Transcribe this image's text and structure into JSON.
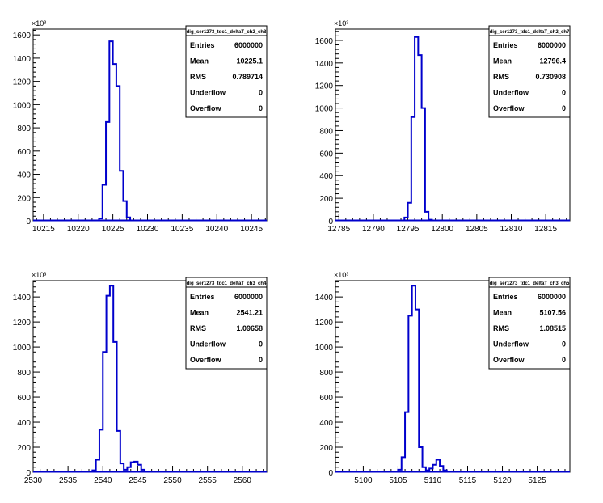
{
  "chart_data": [
    {
      "type": "histogram",
      "stats": {
        "title": "dig_ser1273_tdc1_deltaT_ch2_ch8",
        "rows": [
          {
            "label": "Entries",
            "value": "6000000"
          },
          {
            "label": "Mean",
            "value": "10225.1"
          },
          {
            "label": "RMS",
            "value": "0.789714"
          },
          {
            "label": "Underflow",
            "value": "0"
          },
          {
            "label": "Overflow",
            "value": "0"
          }
        ]
      },
      "xlim": [
        10213.5,
        10247.2
      ],
      "ylim": [
        0,
        1650
      ],
      "y_multiplier": "×10³",
      "x_ticks": [
        "10215",
        "10220",
        "10225",
        "10230",
        "10235",
        "10240",
        "10245"
      ],
      "y_ticks": [
        "0",
        "200",
        "400",
        "600",
        "800",
        "1000",
        "1200",
        "1400",
        "1600"
      ],
      "bin_width": 0.5,
      "bin_start": 10223,
      "counts": [
        20,
        310,
        850,
        1545,
        1350,
        1160,
        430,
        170,
        30
      ]
    },
    {
      "type": "histogram",
      "stats": {
        "title": "dig_ser1273_tdc1_deltaT_ch2_ch7",
        "rows": [
          {
            "label": "Entries",
            "value": "6000000"
          },
          {
            "label": "Mean",
            "value": "12796.4"
          },
          {
            "label": "RMS",
            "value": "0.730908"
          },
          {
            "label": "Underflow",
            "value": "0"
          },
          {
            "label": "Overflow",
            "value": "0"
          }
        ]
      },
      "xlim": [
        12784.5,
        12818.5
      ],
      "ylim": [
        0,
        1700
      ],
      "y_multiplier": "×10³",
      "x_ticks": [
        "12785",
        "12790",
        "12795",
        "12800",
        "12805",
        "12810",
        "12815"
      ],
      "y_ticks": [
        "0",
        "200",
        "400",
        "600",
        "800",
        "1000",
        "1200",
        "1400",
        "1600"
      ],
      "bin_width": 0.5,
      "bin_start": 12794.5,
      "counts": [
        30,
        160,
        920,
        1630,
        1470,
        1000,
        80,
        10
      ]
    },
    {
      "type": "histogram",
      "stats": {
        "title": "dig_ser1273_tdc1_deltaT_ch3_ch4",
        "rows": [
          {
            "label": "Entries",
            "value": "6000000"
          },
          {
            "label": "Mean",
            "value": "2541.21"
          },
          {
            "label": "RMS",
            "value": "1.09658"
          },
          {
            "label": "Underflow",
            "value": "0"
          },
          {
            "label": "Overflow",
            "value": "0"
          }
        ]
      },
      "xlim": [
        2530,
        2563.5
      ],
      "ylim": [
        0,
        1530
      ],
      "y_multiplier": "×10³",
      "x_ticks": [
        "2530",
        "2535",
        "2540",
        "2545",
        "2550",
        "2555",
        "2560"
      ],
      "y_ticks": [
        "0",
        "200",
        "400",
        "600",
        "800",
        "1000",
        "1200",
        "1400"
      ],
      "bin_width": 0.5,
      "bin_start": 2538.5,
      "counts": [
        15,
        100,
        340,
        960,
        1410,
        1490,
        1040,
        330,
        70,
        20,
        40,
        80,
        85,
        60,
        20
      ]
    },
    {
      "type": "histogram",
      "stats": {
        "title": "dig_ser1273_tdc1_deltaT_ch3_ch5",
        "rows": [
          {
            "label": "Entries",
            "value": "6000000"
          },
          {
            "label": "Mean",
            "value": "5107.56"
          },
          {
            "label": "RMS",
            "value": "1.08515"
          },
          {
            "label": "Underflow",
            "value": "0"
          },
          {
            "label": "Overflow",
            "value": "0"
          }
        ]
      },
      "xlim": [
        5096,
        5129.7
      ],
      "ylim": [
        0,
        1530
      ],
      "y_multiplier": "×10³",
      "x_ticks": [
        "5100",
        "5105",
        "5110",
        "5115",
        "5120",
        "5125"
      ],
      "y_ticks": [
        "0",
        "200",
        "400",
        "600",
        "800",
        "1000",
        "1200",
        "1400"
      ],
      "bin_width": 0.5,
      "bin_start": 5105,
      "counts": [
        20,
        120,
        480,
        1250,
        1490,
        1300,
        200,
        40,
        15,
        30,
        60,
        100,
        50,
        15
      ]
    }
  ],
  "colors": {
    "line": "#0000cc",
    "axis": "#000000",
    "background": "#ffffff"
  }
}
